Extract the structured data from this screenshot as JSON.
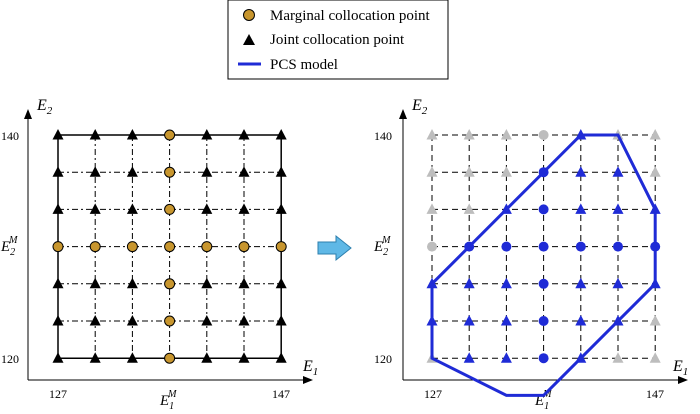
{
  "legend": {
    "items": [
      {
        "label": "Marginal collocation point",
        "marker": "circle",
        "color": "#c8962e"
      },
      {
        "label": "Joint collocation point",
        "marker": "triangle",
        "color": "#000000"
      },
      {
        "label": "PCS model",
        "marker": "line",
        "color": "#1f2bd6"
      }
    ]
  },
  "left_panel": {
    "axis": {
      "x_label": "E",
      "x_label_sub": "1",
      "y_label": "E",
      "y_label_sub": "2",
      "x_ticks": [
        "127",
        "147"
      ],
      "y_ticks": [
        "140",
        "120"
      ],
      "x_mid_label": "E",
      "x_mid_sub": "1",
      "x_mid_sup": "M",
      "y_mid_label": "E",
      "y_mid_sub": "2",
      "y_mid_sup": "M"
    },
    "grid_size": 7,
    "marginal_points_note": "center row and center column are marginal collocation points"
  },
  "arrow": {
    "direction": "right",
    "color": "#5fb8e6"
  },
  "right_panel": {
    "axis": {
      "x_label": "E",
      "x_label_sub": "1",
      "y_label": "E",
      "y_label_sub": "2",
      "x_ticks": [
        "127",
        "147"
      ],
      "y_ticks": [
        "140",
        "120"
      ],
      "x_mid_label": "E",
      "x_mid_sub": "1",
      "x_mid_sup": "M",
      "y_mid_label": "E",
      "y_mid_sub": "2",
      "y_mid_sup": "M"
    },
    "grid_size": 7,
    "colors": {
      "inside": "#1f2bd6",
      "outside": "#bdbdbd",
      "boundary": "#1f2bd6"
    },
    "pcs_polygon_grid": [
      [
        4,
        0
      ],
      [
        5,
        0
      ],
      [
        6,
        2
      ],
      [
        6,
        4
      ],
      [
        3,
        7
      ],
      [
        2,
        7
      ],
      [
        0,
        6
      ],
      [
        0,
        4
      ],
      [
        3,
        1
      ]
    ]
  }
}
